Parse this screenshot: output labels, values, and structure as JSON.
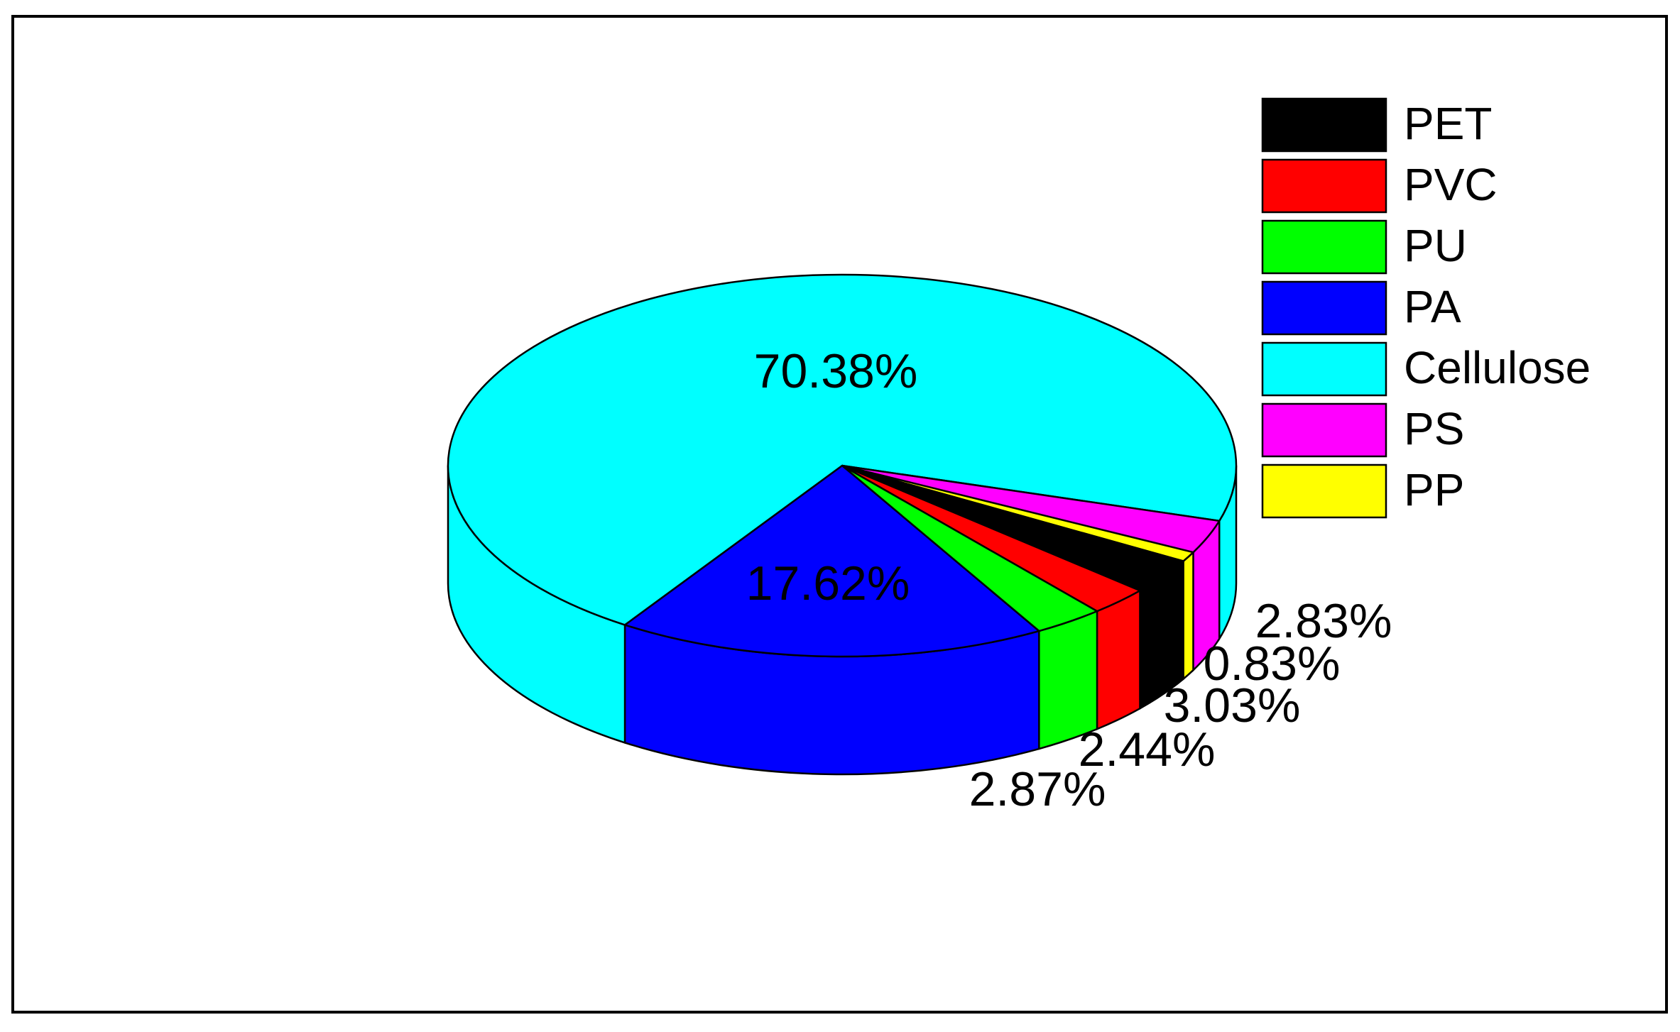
{
  "chart_data": {
    "type": "pie",
    "categories": [
      "PET",
      "PVC",
      "PU",
      "PA",
      "Cellulose",
      "PS",
      "PP"
    ],
    "values": [
      3.03,
      2.44,
      2.87,
      17.62,
      70.38,
      2.83,
      0.83
    ],
    "value_labels": [
      "3.03%",
      "2.44%",
      "2.87%",
      "17.62%",
      "70.38%",
      "2.83%",
      "0.83%"
    ],
    "colors": [
      "#000000",
      "#ff0000",
      "#00ff00",
      "#0000ff",
      "#00ffff",
      "#ff00ff",
      "#ffff00"
    ]
  }
}
